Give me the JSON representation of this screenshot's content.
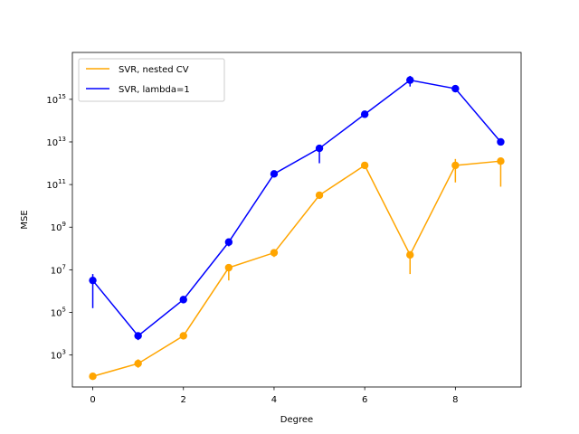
{
  "chart_data": {
    "type": "line",
    "title": "",
    "xlabel": "Degree",
    "ylabel": "MSE",
    "yscale": "log",
    "xlim": [
      -0.45,
      9.45
    ],
    "ylim_log10": [
      1.5,
      17.2
    ],
    "xticks": [
      0,
      2,
      4,
      6,
      8
    ],
    "yticks_exponents": [
      3,
      5,
      7,
      9,
      11,
      13,
      15
    ],
    "ytick_base": "10",
    "grid": false,
    "legend_position": "top-left",
    "series": [
      {
        "name": "SVR, nested CV",
        "color": "#ffa500",
        "x": [
          0,
          1,
          2,
          3,
          4,
          5,
          6,
          7,
          8,
          9
        ],
        "log10_y": [
          2.0,
          2.6,
          3.9,
          7.1,
          7.8,
          10.5,
          11.9,
          7.7,
          11.9,
          12.1
        ],
        "log10_err_low": [
          2.0,
          2.4,
          3.9,
          6.5,
          7.6,
          10.5,
          11.9,
          6.8,
          11.1,
          10.9
        ],
        "log10_err_high": [
          2.0,
          2.8,
          3.9,
          7.2,
          7.9,
          10.6,
          12.0,
          7.8,
          12.2,
          12.2
        ]
      },
      {
        "name": "SVR, lambda=1",
        "color": "#0000ff",
        "x": [
          0,
          1,
          2,
          3,
          4,
          5,
          6,
          7,
          8,
          9
        ],
        "log10_y": [
          6.5,
          3.9,
          5.6,
          8.3,
          11.5,
          12.7,
          14.3,
          15.9,
          15.5,
          13.0
        ],
        "log10_err_low": [
          5.2,
          3.7,
          5.6,
          8.1,
          11.4,
          12.0,
          14.3,
          15.6,
          15.4,
          12.9
        ],
        "log10_err_high": [
          6.8,
          4.0,
          5.7,
          8.4,
          11.6,
          12.8,
          14.4,
          16.1,
          15.6,
          13.1
        ]
      }
    ]
  }
}
